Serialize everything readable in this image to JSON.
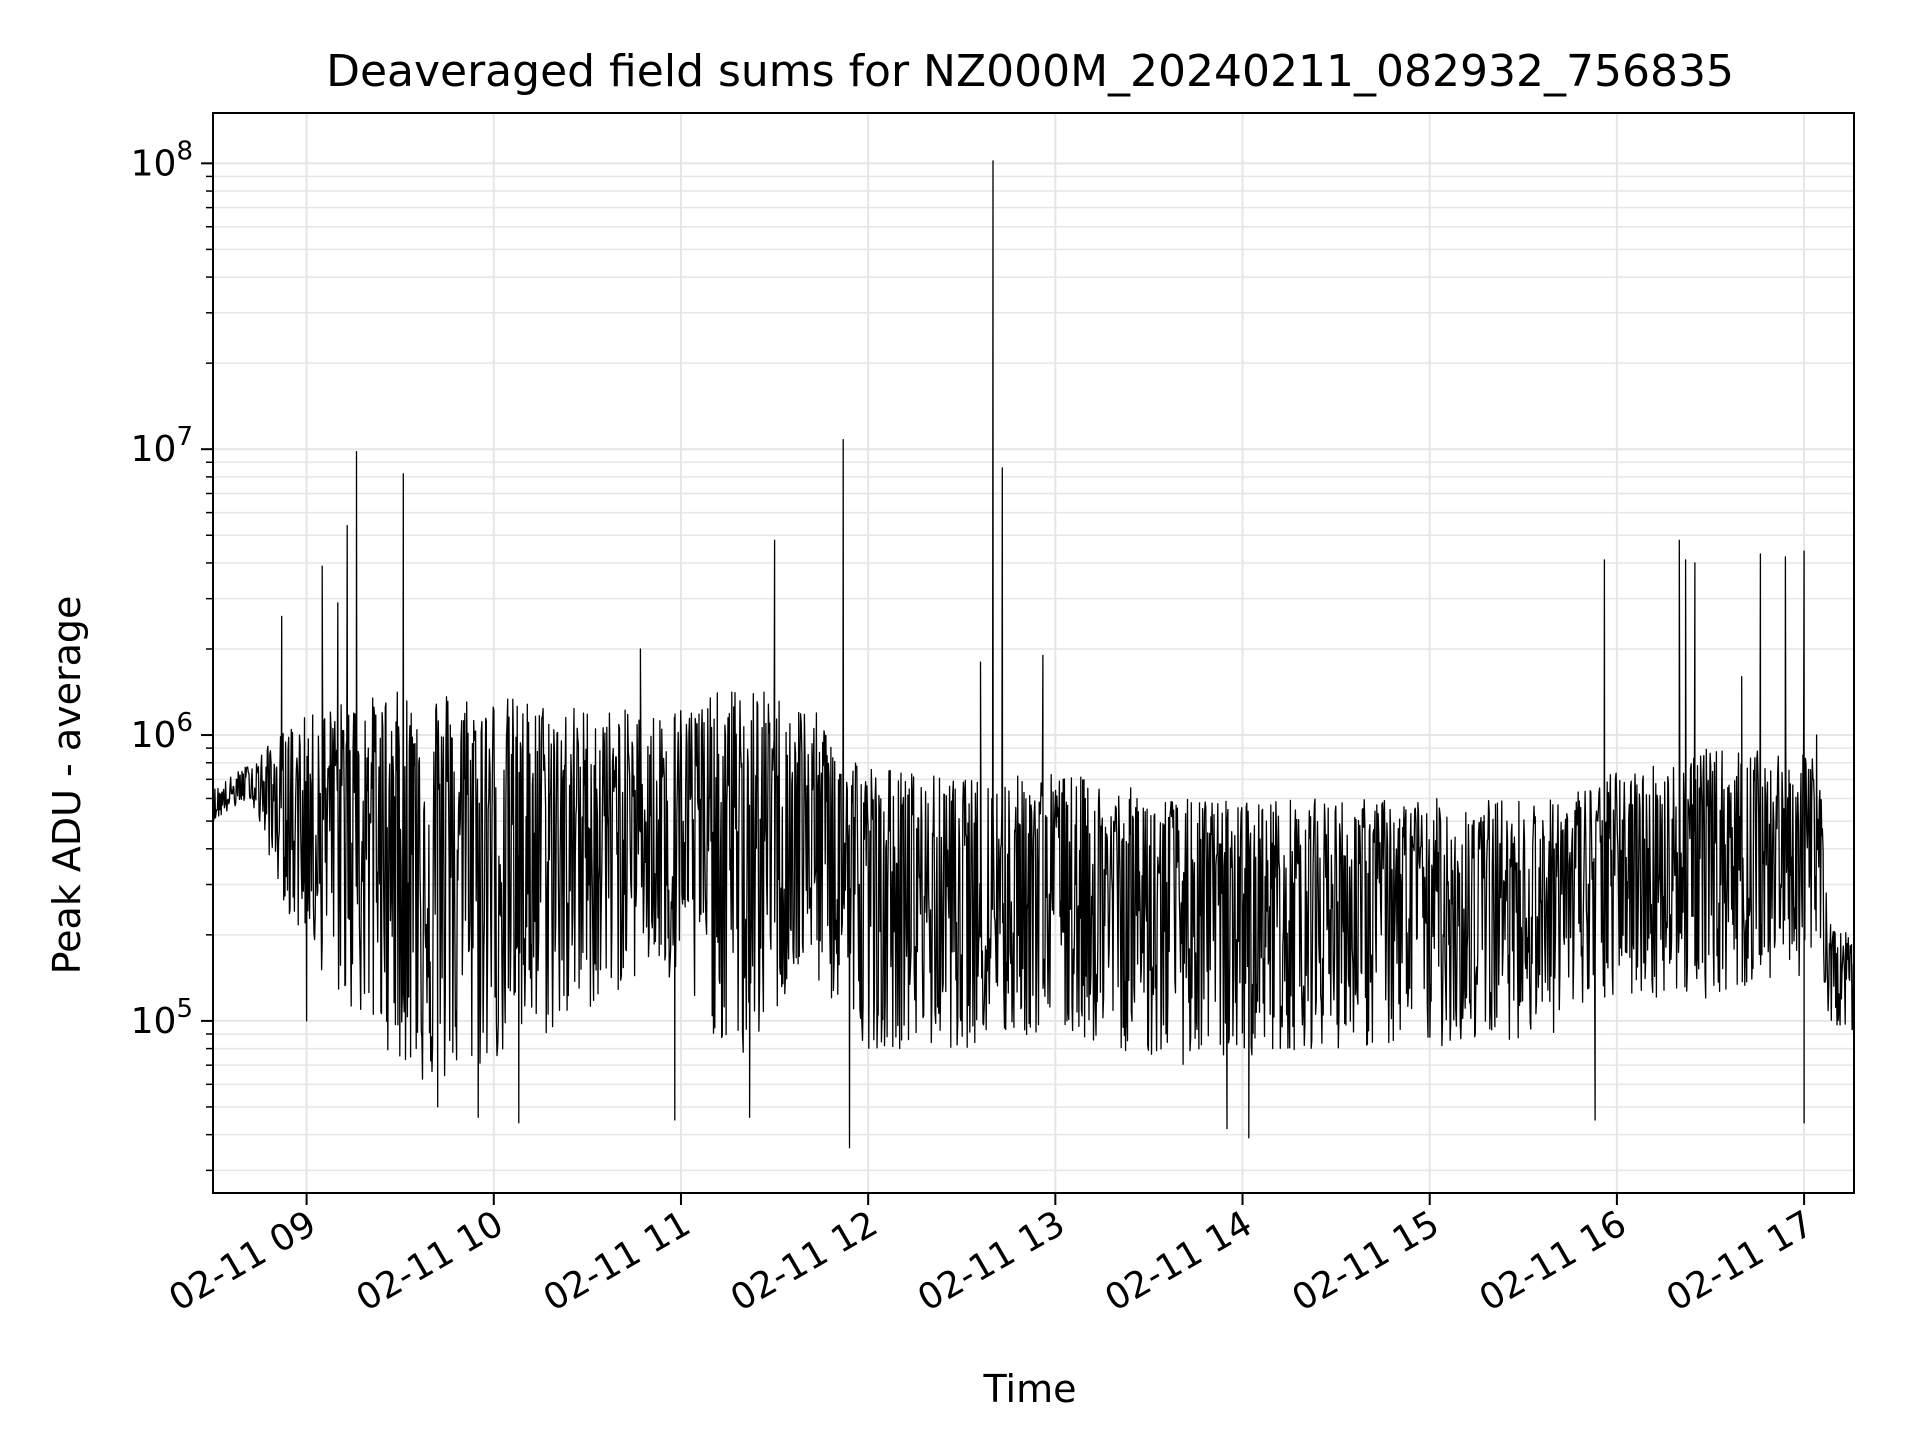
{
  "chart_data": {
    "type": "line",
    "title": "Deaveraged field sums for NZ000M_20240211_082932_756835",
    "xlabel": "Time",
    "ylabel": "Peak ADU - average",
    "y_scale": "log",
    "ylim": [
      25000,
      150000000
    ],
    "xlim": [
      "2024-02-11 08:30",
      "2024-02-11 17:16"
    ],
    "grid": true,
    "line_color": "#000000",
    "grid_color": "#e6e6e6",
    "x_ticks": [
      {
        "value": "2024-02-11 09:00",
        "label": "02-11 09"
      },
      {
        "value": "2024-02-11 10:00",
        "label": "02-11 10"
      },
      {
        "value": "2024-02-11 11:00",
        "label": "02-11 11"
      },
      {
        "value": "2024-02-11 12:00",
        "label": "02-11 12"
      },
      {
        "value": "2024-02-11 13:00",
        "label": "02-11 13"
      },
      {
        "value": "2024-02-11 14:00",
        "label": "02-11 14"
      },
      {
        "value": "2024-02-11 15:00",
        "label": "02-11 15"
      },
      {
        "value": "2024-02-11 16:00",
        "label": "02-11 16"
      },
      {
        "value": "2024-02-11 17:00",
        "label": "02-11 17"
      }
    ],
    "y_ticks": [
      {
        "value": 100000,
        "base": "10",
        "exp": "5"
      },
      {
        "value": 1000000,
        "base": "10",
        "exp": "6"
      },
      {
        "value": 10000000,
        "base": "10",
        "exp": "7"
      },
      {
        "value": 100000000,
        "base": "10",
        "exp": "8"
      }
    ],
    "series": [
      {
        "envelope_points": [
          {
            "x": "2024-02-11 08:30",
            "base": 550000,
            "low": 500000,
            "high": 650000
          },
          {
            "x": "2024-02-11 08:42",
            "base": 700000,
            "low": 600000,
            "high": 800000
          },
          {
            "x": "2024-02-11 08:55",
            "base": 550000,
            "low": 220000,
            "high": 1100000
          },
          {
            "x": "2024-02-11 09:10",
            "base": 600000,
            "low": 120000,
            "high": 1300000
          },
          {
            "x": "2024-02-11 09:40",
            "base": 450000,
            "low": 55000,
            "high": 1500000
          },
          {
            "x": "2024-02-11 10:20",
            "base": 450000,
            "low": 90000,
            "high": 1300000
          },
          {
            "x": "2024-02-11 10:50",
            "base": 550000,
            "low": 150000,
            "high": 1200000
          },
          {
            "x": "2024-02-11 11:20",
            "base": 450000,
            "low": 70000,
            "high": 1500000
          },
          {
            "x": "2024-02-11 11:40",
            "base": 500000,
            "low": 150000,
            "high": 1300000
          },
          {
            "x": "2024-02-11 12:00",
            "base": 300000,
            "low": 80000,
            "high": 800000
          },
          {
            "x": "2024-02-11 12:30",
            "base": 300000,
            "low": 80000,
            "high": 700000
          },
          {
            "x": "2024-02-11 13:00",
            "base": 330000,
            "low": 90000,
            "high": 750000
          },
          {
            "x": "2024-02-11 13:40",
            "base": 250000,
            "low": 70000,
            "high": 600000
          },
          {
            "x": "2024-02-11 14:20",
            "base": 280000,
            "low": 80000,
            "high": 600000
          },
          {
            "x": "2024-02-11 15:00",
            "base": 280000,
            "low": 80000,
            "high": 600000
          },
          {
            "x": "2024-02-11 15:40",
            "base": 300000,
            "low": 90000,
            "high": 600000
          },
          {
            "x": "2024-02-11 16:00",
            "base": 350000,
            "low": 120000,
            "high": 750000
          },
          {
            "x": "2024-02-11 16:30",
            "base": 400000,
            "low": 120000,
            "high": 900000
          },
          {
            "x": "2024-02-11 17:05",
            "base": 480000,
            "low": 150000,
            "high": 850000
          },
          {
            "x": "2024-02-11 17:08",
            "base": 170000,
            "low": 100000,
            "high": 220000
          },
          {
            "x": "2024-02-11 17:16",
            "base": 140000,
            "low": 90000,
            "high": 200000
          }
        ],
        "spikes": [
          {
            "x": "2024-02-11 08:52",
            "y": 2600000
          },
          {
            "x": "2024-02-11 09:05",
            "y": 3900000
          },
          {
            "x": "2024-02-11 09:10",
            "y": 2900000
          },
          {
            "x": "2024-02-11 09:13",
            "y": 5400000
          },
          {
            "x": "2024-02-11 09:16",
            "y": 9800000
          },
          {
            "x": "2024-02-11 09:31",
            "y": 8200000
          },
          {
            "x": "2024-02-11 10:47",
            "y": 2000000
          },
          {
            "x": "2024-02-11 11:30",
            "y": 4800000
          },
          {
            "x": "2024-02-11 11:52",
            "y": 10800000
          },
          {
            "x": "2024-02-11 12:36",
            "y": 1800000
          },
          {
            "x": "2024-02-11 12:40",
            "y": 102000000
          },
          {
            "x": "2024-02-11 12:43",
            "y": 8600000
          },
          {
            "x": "2024-02-11 12:56",
            "y": 1900000
          },
          {
            "x": "2024-02-11 15:56",
            "y": 4100000
          },
          {
            "x": "2024-02-11 16:20",
            "y": 4800000
          },
          {
            "x": "2024-02-11 16:22",
            "y": 4100000
          },
          {
            "x": "2024-02-11 16:25",
            "y": 4000000
          },
          {
            "x": "2024-02-11 16:40",
            "y": 1600000
          },
          {
            "x": "2024-02-11 16:46",
            "y": 4300000
          },
          {
            "x": "2024-02-11 16:54",
            "y": 4200000
          },
          {
            "x": "2024-02-11 17:00",
            "y": 4400000
          },
          {
            "x": "2024-02-11 17:04",
            "y": 1000000
          }
        ],
        "dips": [
          {
            "x": "2024-02-11 09:00",
            "y": 100000
          },
          {
            "x": "2024-02-11 09:42",
            "y": 50000
          },
          {
            "x": "2024-02-11 09:55",
            "y": 46000
          },
          {
            "x": "2024-02-11 10:08",
            "y": 44000
          },
          {
            "x": "2024-02-11 10:58",
            "y": 45000
          },
          {
            "x": "2024-02-11 11:22",
            "y": 46000
          },
          {
            "x": "2024-02-11 11:54",
            "y": 36000
          },
          {
            "x": "2024-02-11 13:55",
            "y": 42000
          },
          {
            "x": "2024-02-11 14:02",
            "y": 39000
          },
          {
            "x": "2024-02-11 15:53",
            "y": 45000
          },
          {
            "x": "2024-02-11 17:00",
            "y": 44000
          }
        ]
      }
    ]
  }
}
